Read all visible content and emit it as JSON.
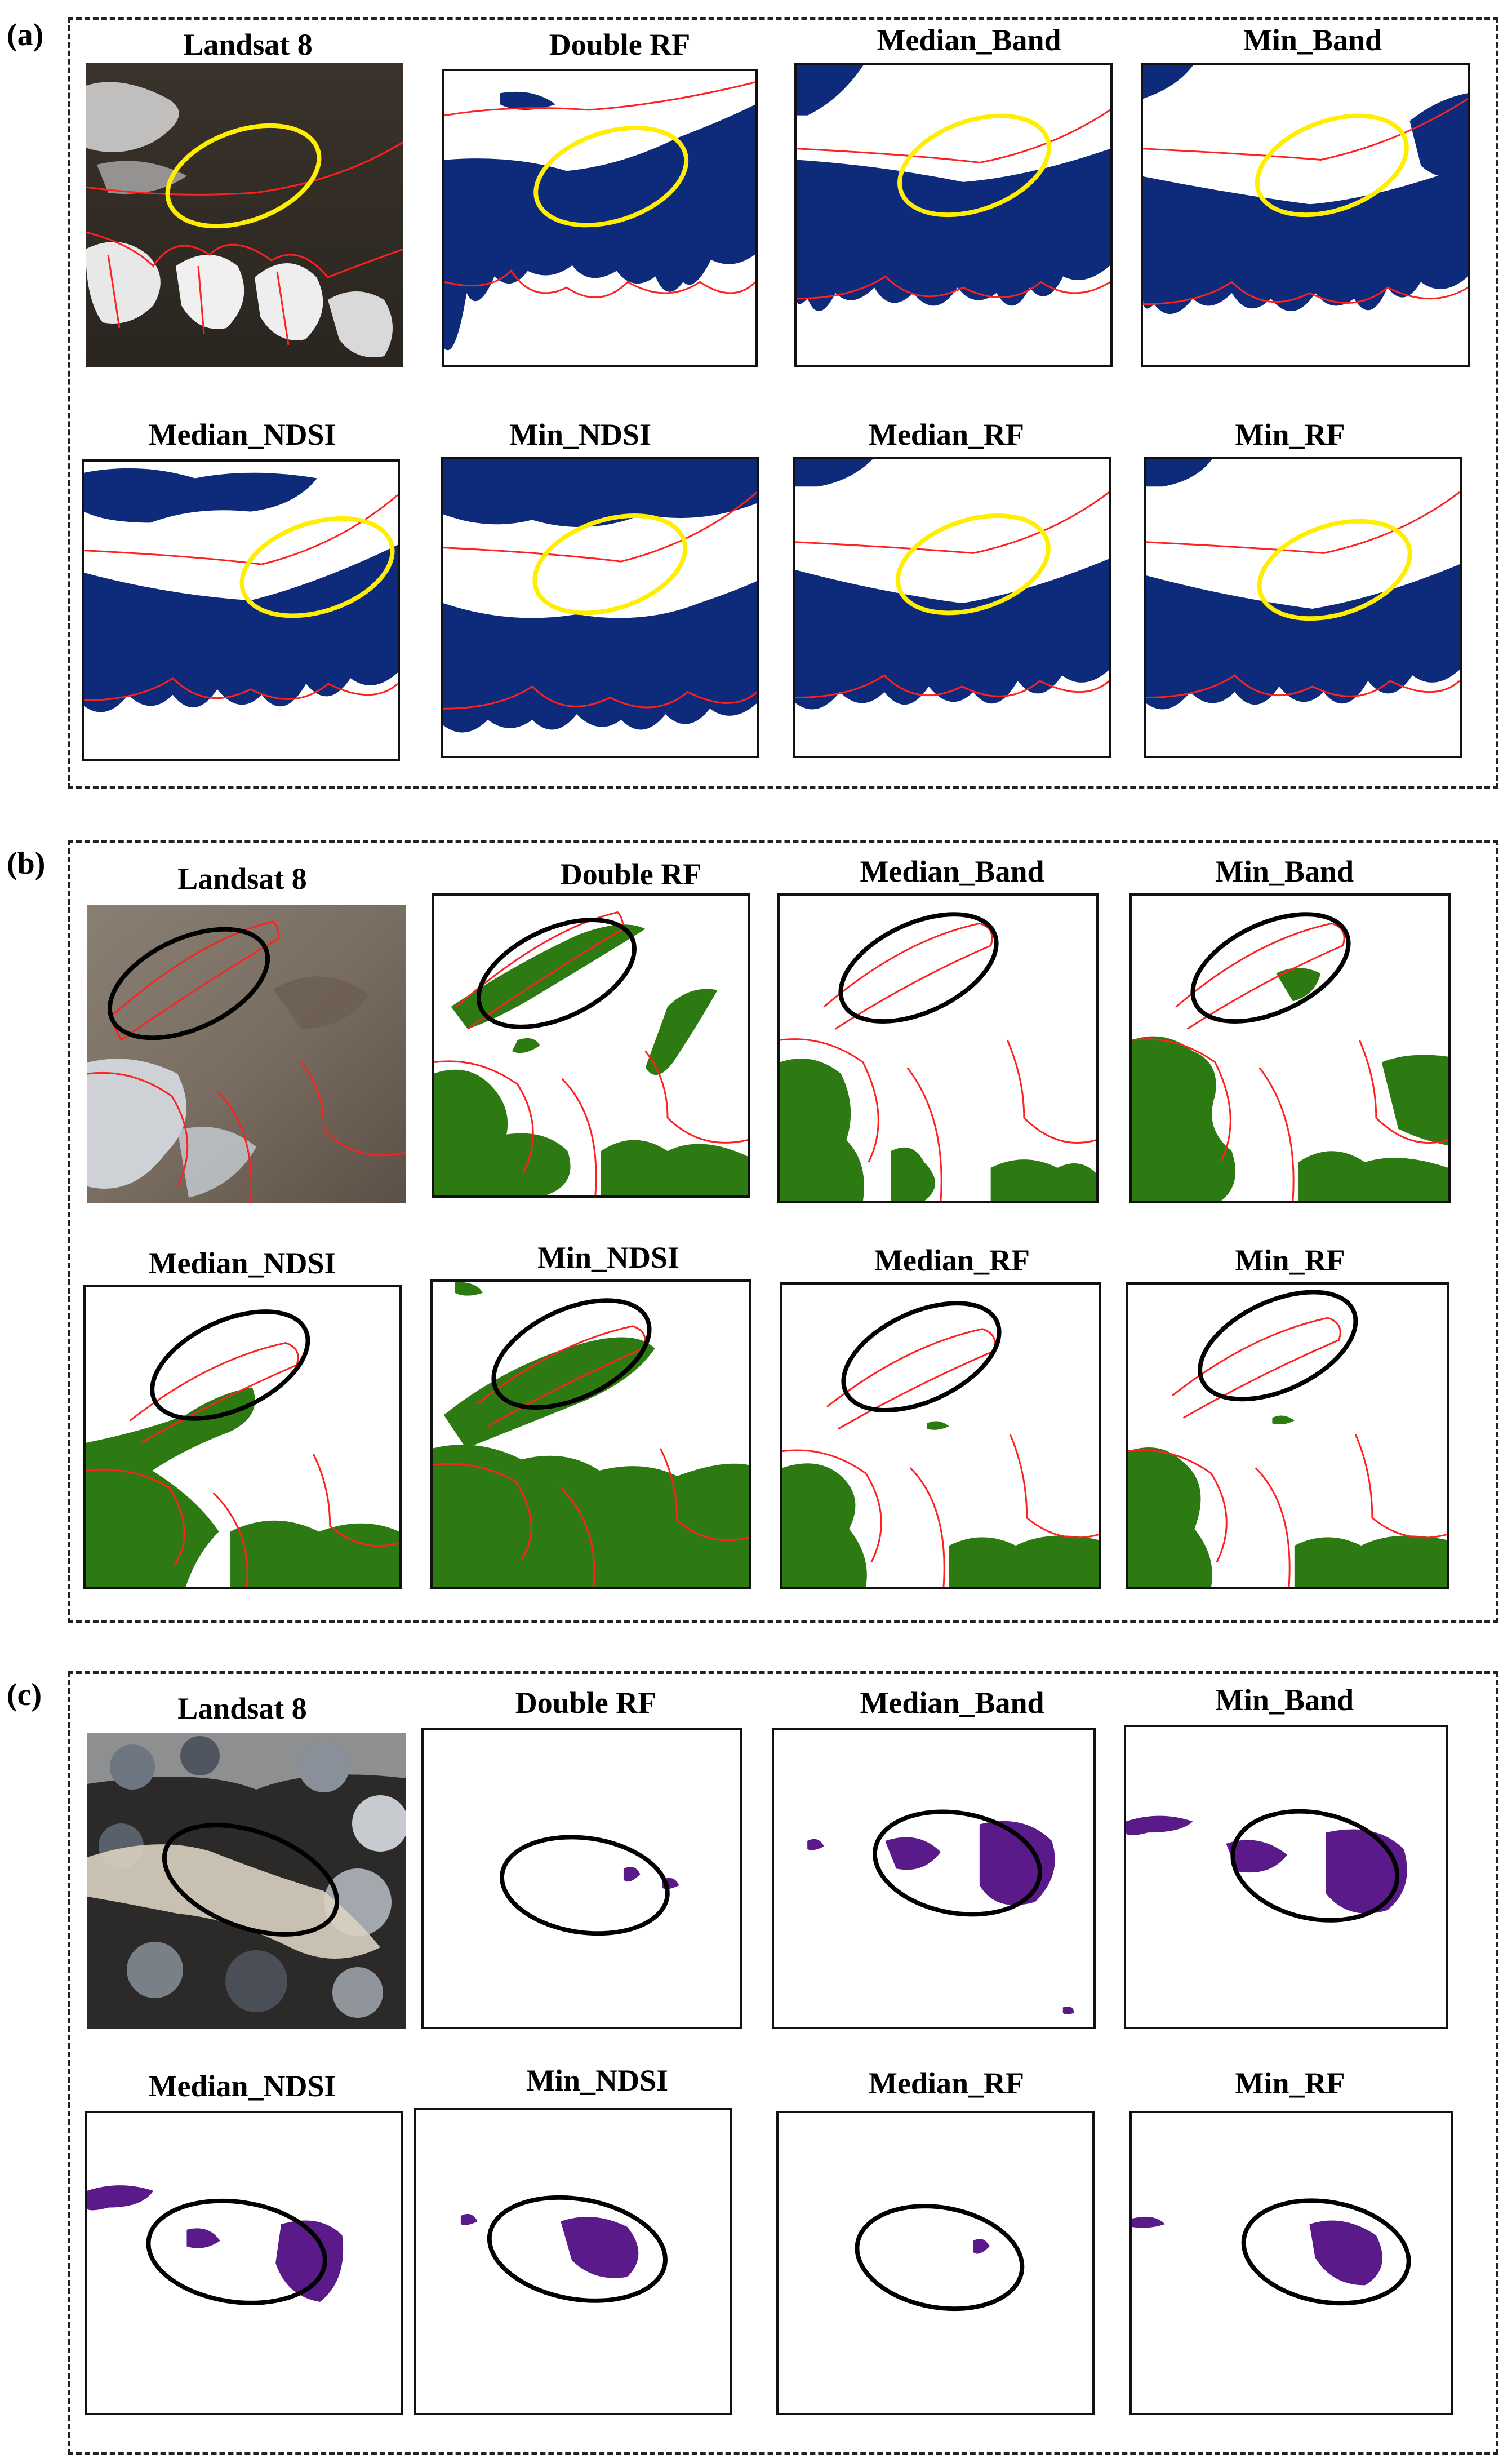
{
  "panels": [
    {
      "letter": "(a)",
      "class_color": "#0d2b7a",
      "ellipse_color": "#ffee00",
      "titles": [
        "Landsat 8",
        "Double RF",
        "Median_Band",
        "Min_Band",
        "Median_NDSI",
        "Min_NDSI",
        "Median_RF",
        "Min_RF"
      ]
    },
    {
      "letter": "(b)",
      "class_color": "#2e7a12",
      "ellipse_color": "#000000",
      "titles": [
        "Landsat 8",
        "Double RF",
        "Median_Band",
        "Min_Band",
        "Median_NDSI",
        "Min_NDSI",
        "Median_RF",
        "Min_RF"
      ]
    },
    {
      "letter": "(c)",
      "class_color": "#5a1a8a",
      "ellipse_color": "#000000",
      "titles": [
        "Landsat 8",
        "Double RF",
        "Median_Band",
        "Min_Band",
        "Median_NDSI",
        "Min_NDSI",
        "Median_RF",
        "Min_RF"
      ]
    }
  ],
  "outline_color": "#ff2020"
}
